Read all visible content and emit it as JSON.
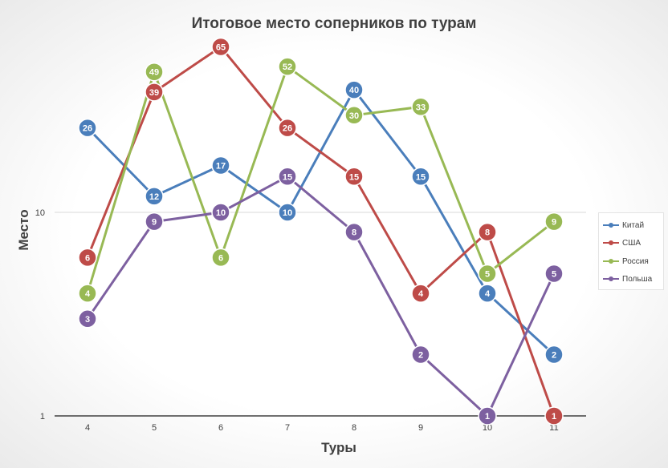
{
  "chart_data": {
    "type": "line",
    "title": "Итоговое место соперников по турам",
    "xlabel": "Туры",
    "ylabel": "Место",
    "y_scale": "log",
    "yticks": [
      "1",
      "10"
    ],
    "ylim": [
      1,
      100
    ],
    "grid": true,
    "legend_position": "right",
    "x": [
      4,
      5,
      6,
      7,
      8,
      9,
      10,
      11
    ],
    "series": [
      {
        "name": "Китай",
        "color": "#4a7ebb",
        "values": [
          26,
          12,
          17,
          10,
          40,
          15,
          4,
          2
        ]
      },
      {
        "name": "США",
        "color": "#be4b48",
        "values": [
          6,
          39,
          65,
          26,
          15,
          4,
          8,
          1
        ]
      },
      {
        "name": "Россия",
        "color": "#98b954",
        "values": [
          4,
          49,
          6,
          52,
          30,
          33,
          5,
          9
        ]
      },
      {
        "name": "Польша",
        "color": "#7d60a0",
        "values": [
          3,
          9,
          10,
          15,
          8,
          2,
          1,
          5
        ]
      }
    ]
  }
}
